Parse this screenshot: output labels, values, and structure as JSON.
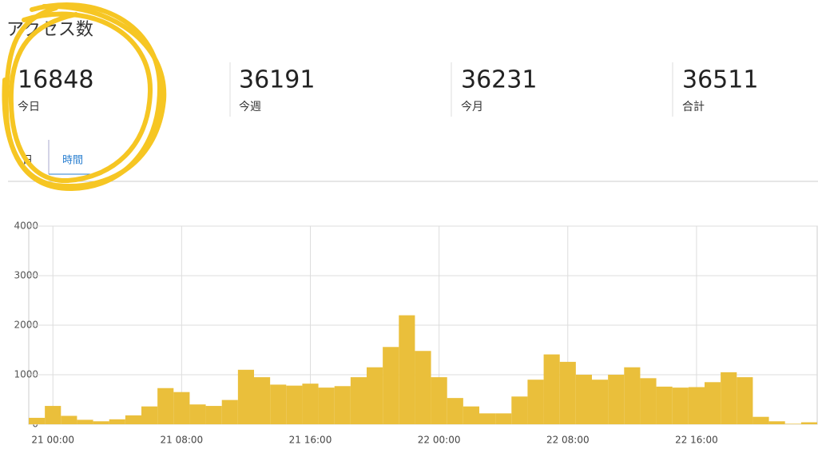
{
  "header": {
    "title": "アクセス数"
  },
  "stats": [
    {
      "value": 16848,
      "label": "今日"
    },
    {
      "value": 36191,
      "label": "今週"
    },
    {
      "value": 36231,
      "label": "今月"
    },
    {
      "value": 36511,
      "label": "合計"
    }
  ],
  "tabs": [
    "日",
    "時間"
  ],
  "chart_data": {
    "type": "bar",
    "categories": [
      null,
      "21 00:00",
      null,
      null,
      null,
      null,
      null,
      null,
      null,
      "21 08:00",
      null,
      null,
      null,
      null,
      null,
      null,
      null,
      "21 16:00",
      null,
      null,
      null,
      null,
      null,
      null,
      null,
      "22 00:00",
      null,
      null,
      null,
      null,
      null,
      null,
      null,
      "22 08:00",
      null,
      null,
      null,
      null,
      null,
      null,
      null,
      "22 16:00",
      null,
      null,
      null,
      null,
      null,
      null,
      null
    ],
    "values": [
      130,
      370,
      170,
      90,
      60,
      100,
      180,
      360,
      730,
      650,
      400,
      370,
      490,
      1100,
      950,
      800,
      780,
      820,
      740,
      770,
      950,
      1150,
      1560,
      2200,
      1480,
      950,
      530,
      360,
      220,
      220,
      560,
      900,
      1410,
      1260,
      1000,
      900,
      1000,
      1150,
      930,
      760,
      740,
      750,
      850,
      1050,
      950,
      150,
      60,
      10,
      40
    ],
    "color": "#eabf3b",
    "ylim": [
      0,
      4000
    ],
    "yticks": [
      0,
      1000,
      2000,
      3000,
      4000
    ],
    "grid": true
  }
}
